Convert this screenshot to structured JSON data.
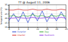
{
  "chart_data": {
    "type": "line",
    "title": "TT @ August 11, 2006",
    "y_label": "Temperature (°C)",
    "x": [
      0,
      2,
      4,
      6,
      8,
      10,
      12,
      14,
      16,
      18,
      20,
      22,
      24
    ],
    "xlim": [
      0,
      24
    ],
    "xticks": [
      0,
      4,
      8,
      12,
      16,
      20,
      24
    ],
    "ylim": [
      10,
      35
    ],
    "yticks": [
      10,
      15,
      20,
      25,
      30,
      35
    ],
    "grid": true,
    "legend": "bottom",
    "series": [
      {
        "name": "Exterior",
        "color": "#1f3fd0",
        "values": [
          17,
          25,
          16,
          27,
          15,
          26,
          17,
          28,
          16,
          25,
          17,
          27,
          18
        ]
      },
      {
        "name": "Day",
        "color": "#2aa02a",
        "values": [
          22,
          23,
          21,
          23,
          22,
          24,
          22,
          23,
          21,
          23,
          22,
          24,
          22
        ]
      },
      {
        "name": "Interior",
        "color": "#d62020",
        "values": [
          29,
          29,
          30,
          29,
          29,
          30,
          29,
          29,
          30,
          29,
          29,
          30,
          29
        ]
      },
      {
        "name": "Bedroom",
        "color": "#8a2be2",
        "values": [
          20,
          20,
          21,
          20,
          20,
          21,
          20,
          20,
          21,
          20,
          20,
          21,
          20
        ]
      }
    ]
  }
}
